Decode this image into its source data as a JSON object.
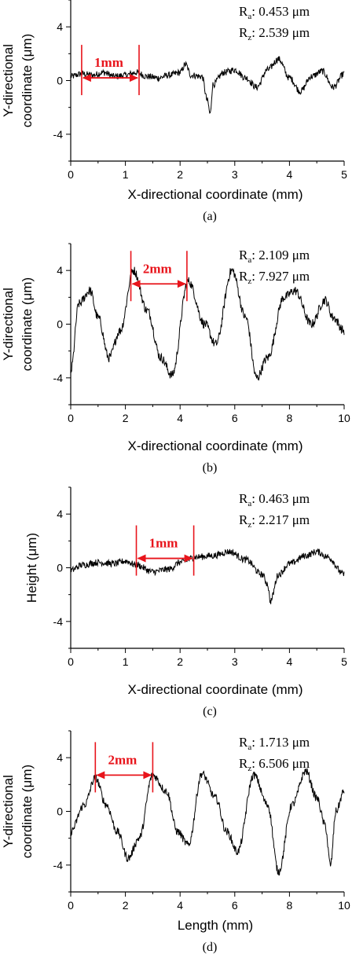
{
  "chart_data": [
    {
      "type": "line",
      "caption": "(a)",
      "xlabel": "X-directional coordinate (mm)",
      "ylabel": [
        "Y-directional",
        "coordinate (μm)"
      ],
      "xlim": [
        0,
        5
      ],
      "ylim": [
        -6,
        6
      ],
      "xticks": [
        0,
        1,
        2,
        3,
        4,
        5
      ],
      "yticks": [
        -4,
        0,
        4
      ],
      "annotation": {
        "label": "1mm",
        "x1": 0.2,
        "x2": 1.25,
        "y": 0.2
      },
      "stats": [
        {
          "sym": "R",
          "sub": "a",
          "val": ": 0.453 μm"
        },
        {
          "sym": "R",
          "sub": "z",
          "val": ": 2.539 μm"
        }
      ],
      "x": [
        0,
        0.2,
        0.4,
        0.6,
        0.8,
        1.0,
        1.2,
        1.4,
        1.6,
        1.8,
        2.0,
        2.1,
        2.2,
        2.4,
        2.5,
        2.55,
        2.6,
        2.8,
        3.0,
        3.2,
        3.4,
        3.6,
        3.8,
        4.0,
        4.2,
        4.4,
        4.6,
        4.8,
        5.0
      ],
      "y": [
        0.3,
        0.5,
        0.4,
        0.6,
        0.3,
        0.4,
        0.6,
        0.3,
        0.2,
        0.4,
        0.6,
        1.2,
        0.4,
        0.3,
        -1.5,
        -2.5,
        -0.3,
        0.6,
        0.8,
        0.2,
        -0.5,
        0.8,
        1.6,
        0.2,
        -0.8,
        0.3,
        0.7,
        -0.5,
        0.5
      ],
      "noise": 0.25
    },
    {
      "type": "line",
      "caption": "(b)",
      "xlabel": "X-directional coordinate (mm)",
      "ylabel": [
        "Y-directional",
        "coordinate (μm)"
      ],
      "xlim": [
        0,
        10
      ],
      "ylim": [
        -6,
        6
      ],
      "xticks": [
        0,
        2,
        4,
        6,
        8,
        10
      ],
      "yticks": [
        -4,
        0,
        4
      ],
      "annotation": {
        "label": "2mm",
        "x1": 2.2,
        "x2": 4.25,
        "y": 3.0
      },
      "stats": [
        {
          "sym": "R",
          "sub": "a",
          "val": ": 2.109 μm"
        },
        {
          "sym": "R",
          "sub": "z",
          "val": ": 7.927 μm"
        }
      ],
      "x": [
        0,
        0.3,
        0.7,
        1.0,
        1.4,
        1.8,
        2.3,
        2.8,
        3.3,
        3.7,
        4.3,
        4.9,
        5.3,
        5.9,
        6.4,
        6.8,
        7.2,
        7.8,
        8.2,
        8.8,
        9.3,
        9.6,
        10.0
      ],
      "y": [
        -3.5,
        1.5,
        2.5,
        0.5,
        -2.5,
        -0.5,
        4.0,
        1.0,
        -2.5,
        -3.8,
        3.2,
        0.0,
        -1.5,
        4.0,
        0.5,
        -4.0,
        -2.5,
        2.0,
        2.5,
        0.0,
        1.8,
        0.5,
        -0.5
      ],
      "noise": 0.35
    },
    {
      "type": "line",
      "caption": "(c)",
      "xlabel": "X-directional coordinate (mm)",
      "ylabel": [
        "Height (μm)"
      ],
      "xlim": [
        0,
        5
      ],
      "ylim": [
        -6,
        6
      ],
      "xticks": [
        0,
        1,
        2,
        3,
        4,
        5
      ],
      "yticks": [
        -4,
        0,
        4
      ],
      "annotation": {
        "label": "1mm",
        "x1": 1.2,
        "x2": 2.25,
        "y": 0.7
      },
      "stats": [
        {
          "sym": "R",
          "sub": "a",
          "val": ": 0.463 μm"
        },
        {
          "sym": "R",
          "sub": "z",
          "val": ": 2.217 μm"
        }
      ],
      "x": [
        0,
        0.2,
        0.5,
        0.8,
        1.0,
        1.2,
        1.5,
        1.8,
        2.0,
        2.3,
        2.6,
        2.9,
        3.2,
        3.5,
        3.6,
        3.65,
        3.8,
        4.0,
        4.3,
        4.5,
        4.7,
        5.0
      ],
      "y": [
        -0.2,
        0.2,
        0.4,
        0.3,
        0.5,
        0.2,
        -0.3,
        -0.1,
        0.4,
        0.8,
        0.9,
        1.2,
        0.6,
        -0.5,
        -1.2,
        -2.5,
        -0.5,
        0.3,
        0.9,
        1.2,
        0.8,
        -0.5
      ],
      "noise": 0.25
    },
    {
      "type": "line",
      "caption": "(d)",
      "xlabel": "Length (mm)",
      "ylabel": [
        "Y-directional",
        "coordinate (μm)"
      ],
      "xlim": [
        0,
        10
      ],
      "ylim": [
        -6,
        6
      ],
      "xticks": [
        0,
        2,
        4,
        6,
        8,
        10
      ],
      "yticks": [
        -4,
        0,
        4
      ],
      "annotation": {
        "label": "2mm",
        "x1": 0.9,
        "x2": 3.0,
        "y": 2.7
      },
      "stats": [
        {
          "sym": "R",
          "sub": "a",
          "val": ": 1.713 μm"
        },
        {
          "sym": "R",
          "sub": "z",
          "val": ": 6.506 μm"
        }
      ],
      "x": [
        0,
        0.5,
        0.9,
        1.3,
        1.7,
        2.1,
        2.5,
        3.0,
        3.5,
        3.9,
        4.3,
        4.8,
        5.3,
        5.7,
        6.1,
        6.7,
        7.2,
        7.6,
        8.1,
        8.6,
        9.0,
        9.3,
        9.5,
        9.7,
        10.0
      ],
      "y": [
        -1.5,
        0.5,
        2.5,
        0.5,
        -1.5,
        -3.5,
        -2.0,
        2.7,
        1.5,
        -1.5,
        -2.5,
        2.8,
        1.0,
        -1.5,
        -3.0,
        2.7,
        0.5,
        -4.5,
        0.5,
        3.0,
        1.0,
        -1.0,
        -4.0,
        0.0,
        1.5
      ],
      "noise": 0.3
    }
  ]
}
